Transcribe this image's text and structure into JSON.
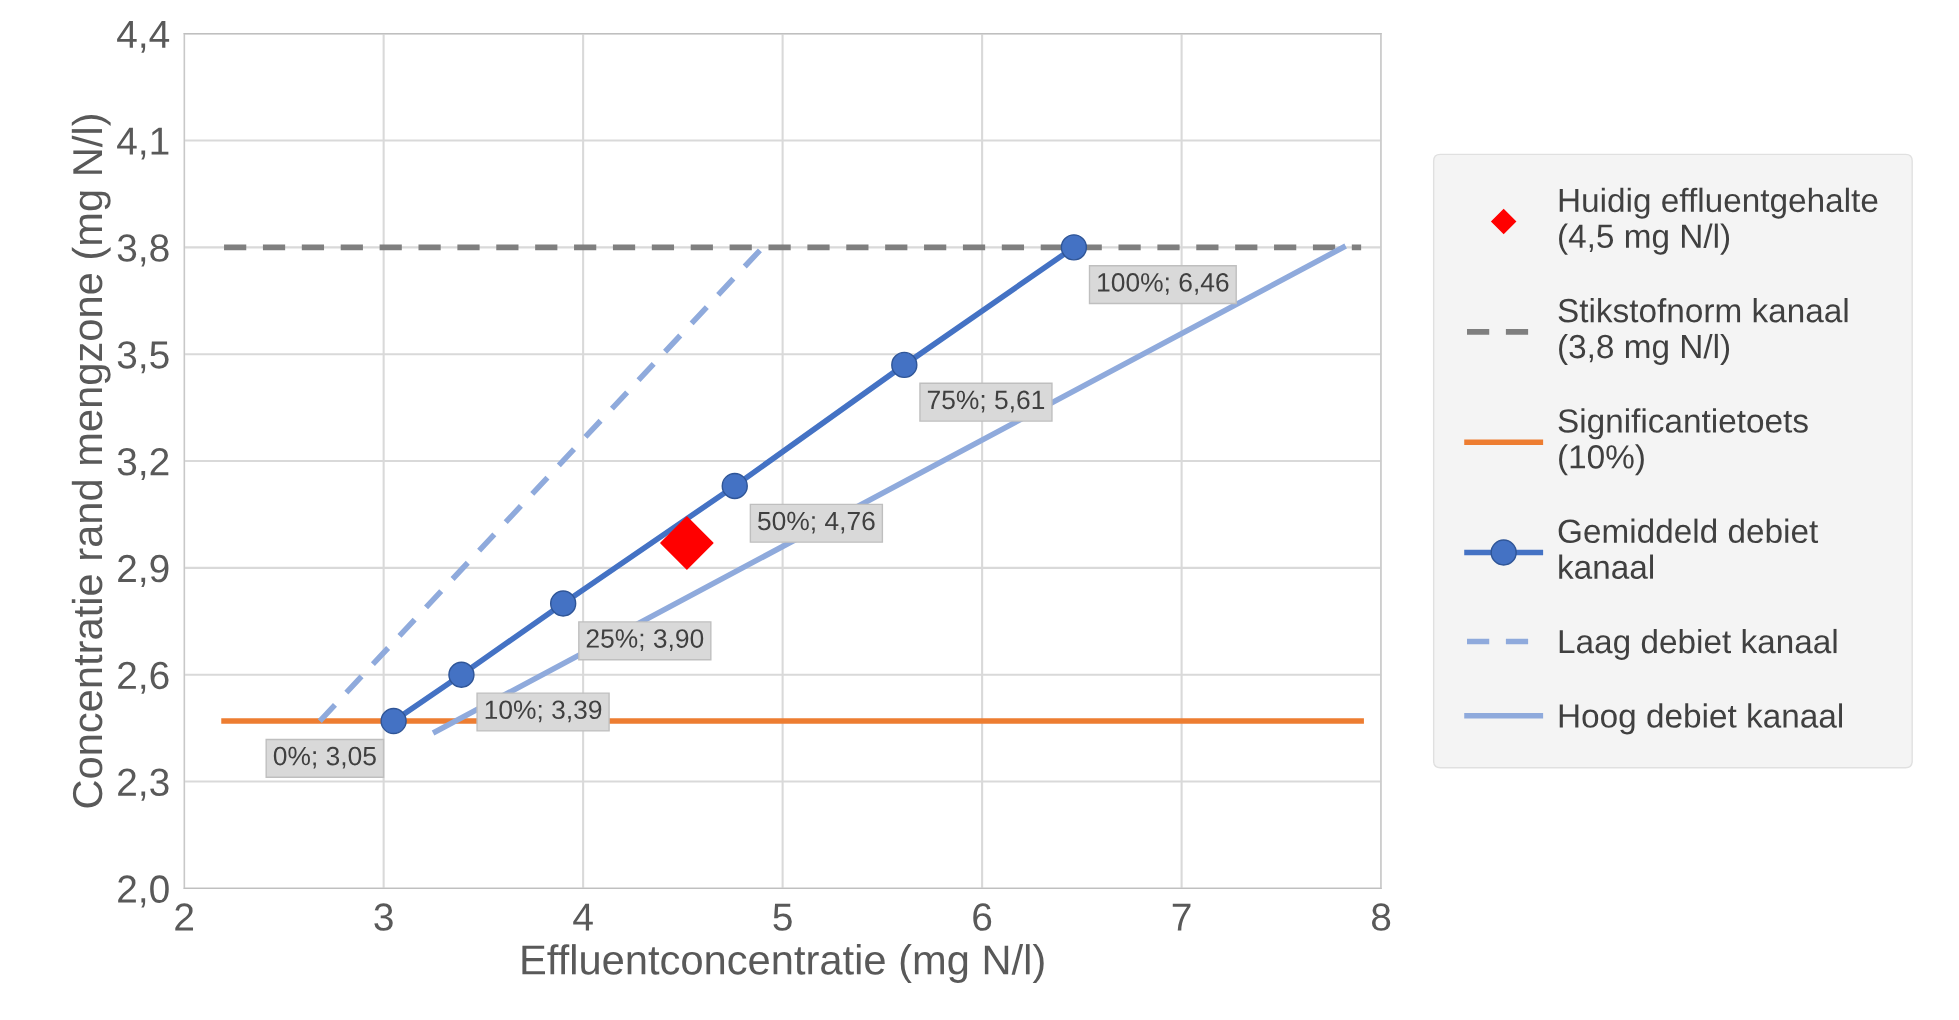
{
  "chart_data": {
    "type": "line",
    "xlabel": "Effluentconcentratie (mg N/l)",
    "ylabel": "Concentratie rand mengzone (mg N/l)",
    "xlim": [
      2,
      8
    ],
    "xticks": [
      2,
      3,
      4,
      5,
      6,
      7,
      8
    ],
    "ylim": [
      2.0,
      4.4
    ],
    "yticks": [
      {
        "value": 2.0,
        "label": "2,0"
      },
      {
        "value": 2.3,
        "label": "2,3"
      },
      {
        "value": 2.6,
        "label": "2,6"
      },
      {
        "value": 2.9,
        "label": "2,9"
      },
      {
        "value": 3.2,
        "label": "3,2"
      },
      {
        "value": 3.5,
        "label": "3,5"
      },
      {
        "value": 3.8,
        "label": "3,8"
      },
      {
        "value": 4.1,
        "label": "4,1"
      },
      {
        "value": 4.4,
        "label": "4,4"
      }
    ],
    "grid": true,
    "legend": "right",
    "annotations": [
      {
        "text": "0%; 3,05",
        "x": 3.05,
        "y": 2.47
      },
      {
        "text": "10%; 3,39",
        "x": 3.39,
        "y": 2.6
      },
      {
        "text": "25%; 3,90",
        "x": 3.9,
        "y": 2.8
      },
      {
        "text": "50%; 4,76",
        "x": 4.76,
        "y": 3.13
      },
      {
        "text": "75%; 5,61",
        "x": 5.61,
        "y": 3.47
      },
      {
        "text": "100%; 6,46",
        "x": 6.46,
        "y": 3.8
      }
    ],
    "series": [
      {
        "name": "Huidig effluentgehalte\n(4,5 mg N/l)",
        "type": "scatter",
        "marker": "diamond",
        "color": "#ff0000",
        "x": [
          4.52
        ],
        "values": [
          2.97
        ]
      },
      {
        "name": "Stikstofnorm kanaal\n(3,8 mg N/l)",
        "line_style": "dashed",
        "marker": "none",
        "color": "#7f7f7f",
        "x": [
          2.2,
          7.9
        ],
        "values": [
          3.8,
          3.8
        ]
      },
      {
        "name": "Significantietoets\n(10%)",
        "line_style": "solid",
        "marker": "none",
        "color": "#ed7d31",
        "x": [
          2.2,
          7.9
        ],
        "values": [
          2.47,
          2.47
        ]
      },
      {
        "name": "Gemiddeld debiet\nkanaal",
        "line_style": "solid",
        "marker": "circle",
        "color": "#4472c4",
        "x": [
          3.05,
          3.39,
          3.9,
          4.76,
          5.61,
          6.46
        ],
        "values": [
          2.47,
          2.6,
          2.8,
          3.13,
          3.47,
          3.8
        ]
      },
      {
        "name": "Laag debiet kanaal",
        "line_style": "dashed",
        "marker": "none",
        "color": "#8faadc",
        "x": [
          2.68,
          4.9
        ],
        "values": [
          2.47,
          3.8
        ]
      },
      {
        "name": "Hoog debiet kanaal",
        "line_style": "solid",
        "marker": "none",
        "color": "#8faadc",
        "x": [
          3.26,
          7.81
        ],
        "values": [
          2.44,
          3.8
        ]
      }
    ]
  }
}
